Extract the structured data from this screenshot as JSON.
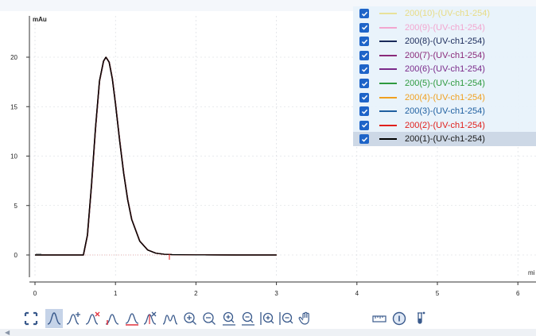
{
  "chart_data": {
    "type": "line",
    "ylabel": "mAu",
    "xlabel": "mi",
    "xlim": [
      0,
      6.2
    ],
    "ylim": [
      -2,
      24
    ],
    "x_ticks": [
      "0",
      "1",
      "2",
      "3",
      "4",
      "5",
      "6"
    ],
    "y_ticks": [
      "0",
      "5",
      "10",
      "15",
      "20"
    ],
    "grid": true,
    "legend_position": "top-right",
    "peak": {
      "x": 0.88,
      "y": 20.0
    },
    "x": [
      0,
      0.6,
      0.65,
      0.7,
      0.75,
      0.8,
      0.85,
      0.88,
      0.92,
      0.96,
      1.0,
      1.05,
      1.1,
      1.15,
      1.2,
      1.3,
      1.4,
      1.5,
      1.6,
      1.7,
      2.0,
      2.5,
      3.0
    ],
    "series": [
      {
        "name": "200(1)-(UV-ch1-254)",
        "color": "#000000",
        "values": [
          0,
          0,
          2.0,
          7.0,
          12.8,
          17.6,
          19.6,
          20.0,
          19.5,
          17.8,
          15.2,
          11.6,
          8.3,
          5.6,
          3.6,
          1.4,
          0.5,
          0.18,
          0.08,
          0.04,
          0.01,
          0,
          0
        ]
      },
      {
        "name": "200(2)-(UV-ch1-254)",
        "color": "#e0201c",
        "values": [
          0,
          0,
          2.0,
          7.0,
          12.8,
          17.6,
          19.6,
          20.0,
          19.5,
          17.8,
          15.2,
          11.6,
          8.3,
          5.6,
          3.6,
          1.4,
          0.5,
          0.18,
          0.08,
          0.04,
          0.01,
          0,
          0
        ]
      },
      {
        "name": "200(3)-(UV-ch1-254)",
        "color": "#1f5fa0",
        "values": [
          0,
          0,
          2.0,
          7.0,
          12.8,
          17.6,
          19.6,
          20.0,
          19.5,
          17.8,
          15.2,
          11.6,
          8.3,
          5.6,
          3.6,
          1.4,
          0.5,
          0.18,
          0.08,
          0.04,
          0.01,
          0,
          0
        ]
      },
      {
        "name": "200(4)-(UV-ch1-254)",
        "color": "#f0a020",
        "values": [
          0,
          0,
          2.0,
          7.0,
          12.8,
          17.6,
          19.6,
          20.0,
          19.5,
          17.8,
          15.2,
          11.6,
          8.3,
          5.6,
          3.6,
          1.4,
          0.5,
          0.18,
          0.08,
          0.04,
          0.01,
          0,
          0
        ]
      },
      {
        "name": "200(5)-(UV-ch1-254)",
        "color": "#2e9a3e",
        "values": [
          0,
          0,
          2.0,
          7.0,
          12.8,
          17.6,
          19.6,
          20.0,
          19.5,
          17.8,
          15.2,
          11.6,
          8.3,
          5.6,
          3.6,
          1.4,
          0.5,
          0.18,
          0.08,
          0.04,
          0.01,
          0,
          0
        ]
      },
      {
        "name": "200(6)-(UV-ch1-254)",
        "color": "#7a2a8a",
        "values": [
          0,
          0,
          2.0,
          7.0,
          12.8,
          17.6,
          19.6,
          20.0,
          19.5,
          17.8,
          15.2,
          11.6,
          8.3,
          5.6,
          3.6,
          1.4,
          0.5,
          0.18,
          0.08,
          0.04,
          0.01,
          0,
          0
        ]
      },
      {
        "name": "200(7)-(UV-ch1-254)",
        "color": "#8a2a7a",
        "values": [
          0,
          0,
          2.0,
          7.0,
          12.8,
          17.6,
          19.6,
          20.0,
          19.5,
          17.8,
          15.2,
          11.6,
          8.3,
          5.6,
          3.6,
          1.4,
          0.5,
          0.18,
          0.08,
          0.04,
          0.01,
          0,
          0
        ]
      },
      {
        "name": "200(8)-(UV-ch1-254)",
        "color": "#1a2a5a",
        "values": [
          0,
          0,
          2.0,
          7.0,
          12.8,
          17.6,
          19.6,
          20.0,
          19.5,
          17.8,
          15.2,
          11.6,
          8.3,
          5.6,
          3.6,
          1.4,
          0.5,
          0.18,
          0.08,
          0.04,
          0.01,
          0,
          0
        ]
      },
      {
        "name": "200(9)-(UV-ch1-254)",
        "color": "#f2a6cf",
        "values": [
          0,
          0,
          2.0,
          7.0,
          12.8,
          17.6,
          19.6,
          20.0,
          19.5,
          17.8,
          15.2,
          11.6,
          8.3,
          5.6,
          3.6,
          1.4,
          0.5,
          0.18,
          0.08,
          0.04,
          0.01,
          0,
          0
        ]
      },
      {
        "name": "200(10)-(UV-ch1-254)",
        "color": "#e8e29a",
        "values": [
          0,
          0,
          2.0,
          7.0,
          12.8,
          17.6,
          19.6,
          20.0,
          19.5,
          17.8,
          15.2,
          11.6,
          8.3,
          5.6,
          3.6,
          1.4,
          0.5,
          0.18,
          0.08,
          0.04,
          0.01,
          0,
          0
        ]
      }
    ]
  },
  "legend": {
    "items": [
      {
        "label": "200(10)-(UV-ch1-254)",
        "color": "#e8e29a",
        "text_color": "#e8dc86",
        "checked": true,
        "selected": false
      },
      {
        "label": "200(9)-(UV-ch1-254)",
        "color": "#f2a6cf",
        "text_color": "#f2a6cf",
        "checked": true,
        "selected": false
      },
      {
        "label": "200(8)-(UV-ch1-254)",
        "color": "#1a2a5a",
        "text_color": "#1a2a5a",
        "checked": true,
        "selected": false
      },
      {
        "label": "200(7)-(UV-ch1-254)",
        "color": "#8a2a7a",
        "text_color": "#8a2a7a",
        "checked": true,
        "selected": false
      },
      {
        "label": "200(6)-(UV-ch1-254)",
        "color": "#7a2a8a",
        "text_color": "#7a2a8a",
        "checked": true,
        "selected": false
      },
      {
        "label": "200(5)-(UV-ch1-254)",
        "color": "#2e9a3e",
        "text_color": "#2e9a3e",
        "checked": true,
        "selected": false
      },
      {
        "label": "200(4)-(UV-ch1-254)",
        "color": "#f0a020",
        "text_color": "#f0a020",
        "checked": true,
        "selected": false
      },
      {
        "label": "200(3)-(UV-ch1-254)",
        "color": "#1f5fa0",
        "text_color": "#1f5fa0",
        "checked": true,
        "selected": false
      },
      {
        "label": "200(2)-(UV-ch1-254)",
        "color": "#e0201c",
        "text_color": "#e0201c",
        "checked": true,
        "selected": false
      },
      {
        "label": "200(1)-(UV-ch1-254)",
        "color": "#000000",
        "text_color": "#1a1a1a",
        "checked": true,
        "selected": true
      }
    ]
  },
  "toolbar": {
    "icons": [
      {
        "name": "fullscreen-icon",
        "active": false
      },
      {
        "name": "peak-icon",
        "active": true
      },
      {
        "name": "add-peak-icon",
        "active": false
      },
      {
        "name": "delete-peak-icon",
        "active": false
      },
      {
        "name": "peak-start-icon",
        "active": false
      },
      {
        "name": "baseline-icon",
        "active": false
      },
      {
        "name": "peak-cut-icon",
        "active": false
      },
      {
        "name": "peak-split-icon",
        "active": false
      },
      {
        "name": "zoom-in-icon",
        "active": false
      },
      {
        "name": "zoom-out-icon",
        "active": false
      },
      {
        "name": "zoom-in-x-icon",
        "active": false
      },
      {
        "name": "zoom-out-x-icon",
        "active": false
      },
      {
        "name": "zoom-in-y-icon",
        "active": false
      },
      {
        "name": "zoom-out-y-icon",
        "active": false
      },
      {
        "name": "pan-hand-icon",
        "active": false
      },
      {
        "name": "ruler-icon",
        "active": false
      },
      {
        "name": "info-icon",
        "active": false
      },
      {
        "name": "sample-tube-icon",
        "active": false
      }
    ]
  },
  "colors": {
    "accent": "#1e64c8",
    "grid": "#d4d8de",
    "axis": "#333333",
    "legend_bg": "#e8f2fb",
    "selected_row": "#cdd8e6"
  }
}
